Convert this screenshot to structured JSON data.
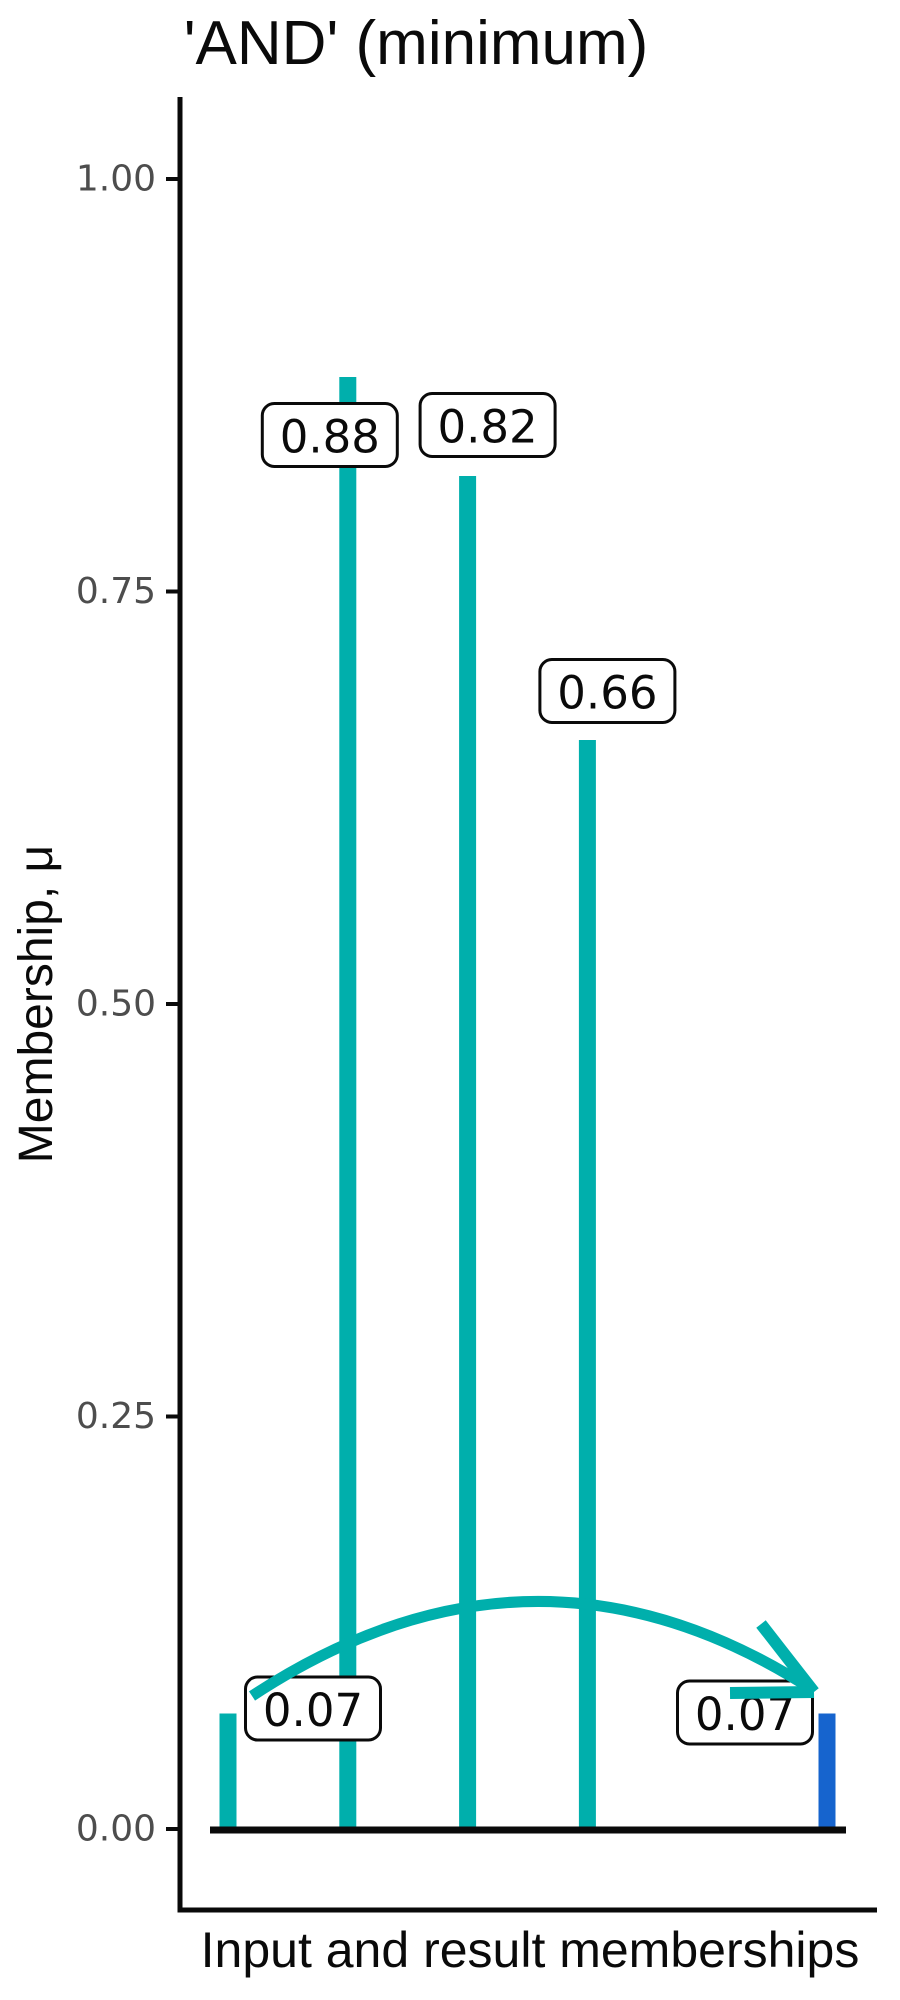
{
  "chart_data": {
    "type": "bar",
    "title": "'AND' (minimum)",
    "xlabel": "Input and result memberships",
    "ylabel": "Membership, μ",
    "ylim": [
      0,
      1.05
    ],
    "grid": false,
    "legend": false,
    "yticks": [
      {
        "value": 0.0,
        "label": "0.00"
      },
      {
        "value": 0.25,
        "label": "0.25"
      },
      {
        "value": 0.5,
        "label": "0.50"
      },
      {
        "value": 0.75,
        "label": "0.75"
      },
      {
        "value": 1.0,
        "label": "1.00"
      }
    ],
    "series": [
      {
        "name": "inputs",
        "color": "#00AFAC",
        "points": [
          {
            "position": 1,
            "value": 0.07,
            "label": "0.07"
          },
          {
            "position": 2,
            "value": 0.88,
            "label": "0.88"
          },
          {
            "position": 3,
            "value": 0.82,
            "label": "0.82"
          },
          {
            "position": 4,
            "value": 0.66,
            "label": "0.66"
          }
        ]
      },
      {
        "name": "result",
        "color": "#1664CE",
        "points": [
          {
            "position": 6,
            "value": 0.07,
            "label": "0.07"
          }
        ]
      }
    ],
    "annotation": {
      "type": "curved-arrow",
      "from_position": 1,
      "to_position": 6,
      "color": "#00AFAC"
    }
  }
}
